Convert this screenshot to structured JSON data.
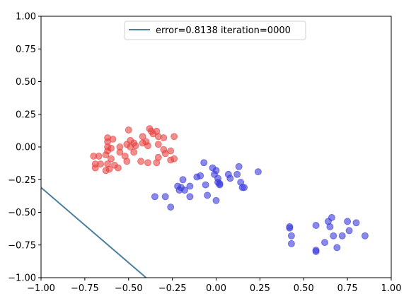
{
  "chart_data": {
    "type": "scatter",
    "title": "",
    "xlabel": "",
    "ylabel": "",
    "xlim": [
      -1.0,
      1.0
    ],
    "ylim": [
      -1.0,
      1.0
    ],
    "grid": false,
    "legend_position": "upper center",
    "x_ticks": [
      -1.0,
      -0.75,
      -0.5,
      -0.25,
      0.0,
      0.25,
      0.5,
      0.75,
      1.0
    ],
    "x_tick_labels": [
      "−1.00",
      "−0.75",
      "−0.50",
      "−0.25",
      "0.00",
      "0.25",
      "0.50",
      "0.75",
      "1.00"
    ],
    "y_ticks": [
      1.0,
      0.75,
      0.5,
      0.25,
      0.0,
      -0.25,
      -0.5,
      -0.75,
      -1.0
    ],
    "y_tick_labels": [
      "1.00",
      "0.75",
      "0.50",
      "0.25",
      "0.00",
      "−0.25",
      "−0.50",
      "−0.75",
      "−1.00"
    ],
    "line": {
      "label": "error=0.8138 iteration=0000",
      "color": "#4a7f9e",
      "points": [
        [
          -1.0,
          -0.31
        ],
        [
          -0.4,
          -1.0
        ]
      ]
    },
    "series": [
      {
        "color": "#e8413f",
        "points": [
          [
            -0.7,
            -0.07
          ],
          [
            -0.67,
            -0.07
          ],
          [
            -0.69,
            -0.13
          ],
          [
            -0.69,
            -0.16
          ],
          [
            -0.66,
            -0.13
          ],
          [
            -0.63,
            -0.06
          ],
          [
            -0.62,
            -0.03
          ],
          [
            -0.62,
            0.0
          ],
          [
            -0.62,
            0.04
          ],
          [
            -0.62,
            0.07
          ],
          [
            -0.59,
            0.06
          ],
          [
            -0.6,
            -0.01
          ],
          [
            -0.6,
            -0.09
          ],
          [
            -0.62,
            -0.13
          ],
          [
            -0.61,
            -0.17
          ],
          [
            -0.63,
            -0.18
          ],
          [
            -0.58,
            -0.14
          ],
          [
            -0.56,
            -0.16
          ],
          [
            -0.55,
            0.0
          ],
          [
            -0.55,
            -0.04
          ],
          [
            -0.52,
            -0.07
          ],
          [
            -0.51,
            -0.11
          ],
          [
            -0.51,
            0.02
          ],
          [
            -0.49,
            0.05
          ],
          [
            -0.47,
            0.03
          ],
          [
            -0.47,
            -0.04
          ],
          [
            -0.49,
            0.0
          ],
          [
            -0.5,
            0.13
          ],
          [
            -0.46,
            0.01
          ],
          [
            -0.43,
            -0.11
          ],
          [
            -0.42,
            0.03
          ],
          [
            -0.42,
            0.08
          ],
          [
            -0.4,
            0.04
          ],
          [
            -0.39,
            -0.12
          ],
          [
            -0.39,
            0.01
          ],
          [
            -0.38,
            0.14
          ],
          [
            -0.37,
            0.12
          ],
          [
            -0.36,
            0.1
          ],
          [
            -0.34,
            0.12
          ],
          [
            -0.33,
            0.08
          ],
          [
            -0.33,
            0.02
          ],
          [
            -0.34,
            -0.12
          ],
          [
            -0.33,
            -0.08
          ],
          [
            -0.3,
            0.07
          ],
          [
            -0.3,
            -0.02
          ],
          [
            -0.29,
            -0.05
          ],
          [
            -0.26,
            -0.03
          ],
          [
            -0.24,
            0.08
          ],
          [
            -0.24,
            -0.09
          ],
          [
            -0.26,
            -0.1
          ]
        ]
      },
      {
        "color": "#3b3bdb",
        "points": [
          [
            -0.35,
            -0.38
          ],
          [
            -0.29,
            -0.38
          ],
          [
            -0.26,
            -0.46
          ],
          [
            -0.22,
            -0.3
          ],
          [
            -0.21,
            -0.33
          ],
          [
            -0.2,
            -0.31
          ],
          [
            -0.19,
            -0.25
          ],
          [
            -0.18,
            -0.33
          ],
          [
            -0.15,
            -0.38
          ],
          [
            -0.15,
            -0.3
          ],
          [
            -0.11,
            -0.23
          ],
          [
            -0.09,
            -0.22
          ],
          [
            -0.07,
            -0.12
          ],
          [
            -0.06,
            -0.29
          ],
          [
            -0.05,
            -0.37
          ],
          [
            -0.02,
            -0.16
          ],
          [
            -0.01,
            -0.21
          ],
          [
            0.0,
            -0.18
          ],
          [
            0.0,
            -0.41
          ],
          [
            0.01,
            -0.24
          ],
          [
            0.01,
            -0.27
          ],
          [
            0.02,
            -0.29
          ],
          [
            0.02,
            -0.28
          ],
          [
            0.07,
            -0.21
          ],
          [
            0.08,
            -0.24
          ],
          [
            0.12,
            -0.21
          ],
          [
            0.13,
            -0.15
          ],
          [
            0.14,
            -0.27
          ],
          [
            0.15,
            -0.31
          ],
          [
            0.16,
            -0.31
          ],
          [
            0.24,
            -0.19
          ],
          [
            0.42,
            -0.61
          ],
          [
            0.42,
            -0.62
          ],
          [
            0.43,
            -0.68
          ],
          [
            0.43,
            -0.74
          ],
          [
            0.57,
            -0.6
          ],
          [
            0.57,
            -0.79
          ],
          [
            0.57,
            -0.8
          ],
          [
            0.62,
            -0.73
          ],
          [
            0.64,
            -0.57
          ],
          [
            0.65,
            -0.61
          ],
          [
            0.66,
            -0.54
          ],
          [
            0.67,
            -0.68
          ],
          [
            0.69,
            -0.77
          ],
          [
            0.72,
            -0.68
          ],
          [
            0.75,
            -0.57
          ],
          [
            0.76,
            -0.64
          ],
          [
            0.8,
            -0.58
          ],
          [
            0.85,
            -0.68
          ]
        ]
      }
    ]
  }
}
